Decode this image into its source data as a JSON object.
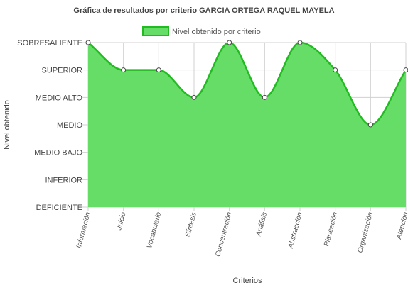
{
  "chart_data": {
    "type": "area",
    "title": "Gráfica de resultados por criterio GARCIA ORTEGA RAQUEL MAYELA",
    "xlabel": "Criterios",
    "ylabel": "Nivel obtenido",
    "legend": {
      "position": "top",
      "label": "Nivel obtenido por criterio"
    },
    "categories": [
      "Información",
      "Juicio",
      "Vocabulario",
      "Síntesis",
      "Concentración",
      "Análisis",
      "Abstracción",
      "Planeación",
      "Organización",
      "Atención"
    ],
    "levels": [
      "DEFICIENTE",
      "INFERIOR",
      "MEDIO BAJO",
      "MEDIO",
      "MEDIO ALTO",
      "SUPERIOR",
      "SOBRESALIENTE"
    ],
    "series": [
      {
        "name": "Nivel obtenido por criterio",
        "values": [
          "SOBRESALIENTE",
          "SUPERIOR",
          "SUPERIOR",
          "MEDIO ALTO",
          "SOBRESALIENTE",
          "MEDIO ALTO",
          "SOBRESALIENTE",
          "SUPERIOR",
          "MEDIO",
          "SUPERIOR"
        ]
      }
    ],
    "grid": true,
    "colors": {
      "fill": "#66dd66",
      "line": "#22bb22",
      "grid": "#d0d0d0",
      "point_fill": "#ffffff",
      "point_stroke": "#444444"
    }
  }
}
